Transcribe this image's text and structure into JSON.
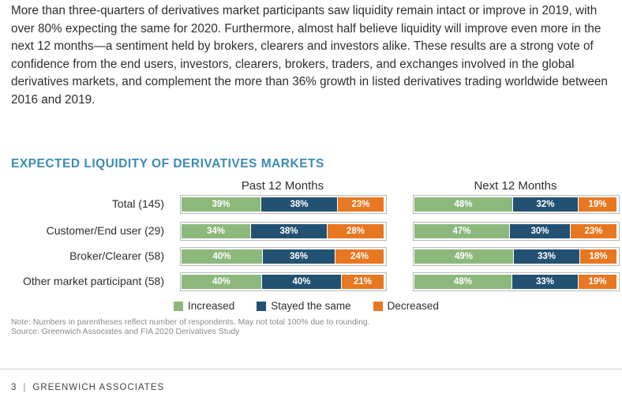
{
  "intro_text": "More than three-quarters of derivatives market participants saw liquidity remain intact or improve in 2019, with over 80% expecting the same for 2020. Furthermore, almost half believe liquidity will improve even more in the next 12 months—a sentiment held by brokers, clearers and investors alike. These results are a strong vote of confidence from the end users, investors, clearers, brokers, traders, and exchanges involved in the global derivatives markets, and complement the more than 36% growth in listed derivatives trading worldwide between 2016 and 2019.",
  "chart_data": {
    "type": "bar",
    "stacked": true,
    "orientation": "horizontal",
    "title": "EXPECTED LIQUIDITY OF DERIVATIVES MARKETS",
    "categories": [
      "Total (145)",
      "Customer/End user (29)",
      "Broker/Clearer (58)",
      "Other market participant (58)"
    ],
    "colors": {
      "Increased": "#8db87c",
      "Stayed the same": "#225171",
      "Decreased": "#e87722"
    },
    "legend": [
      "Increased",
      "Stayed the same",
      "Decreased"
    ],
    "panels": [
      {
        "title": "Past 12 Months",
        "series": [
          {
            "name": "Increased",
            "values": [
              39,
              34,
              40,
              40
            ]
          },
          {
            "name": "Stayed the same",
            "values": [
              38,
              38,
              36,
              40
            ]
          },
          {
            "name": "Decreased",
            "values": [
              23,
              28,
              24,
              21
            ]
          }
        ]
      },
      {
        "title": "Next 12 Months",
        "series": [
          {
            "name": "Increased",
            "values": [
              48,
              47,
              49,
              48
            ]
          },
          {
            "name": "Stayed the same",
            "values": [
              32,
              30,
              33,
              33
            ]
          },
          {
            "name": "Decreased",
            "values": [
              19,
              23,
              18,
              19
            ]
          }
        ]
      }
    ],
    "value_suffix": "%",
    "note": "Note: Numbers in parentheses reflect number of respondents. May not total 100% due to rounding.",
    "source": "Source: Greenwich Associates and FIA 2020 Derivatives Study"
  },
  "footer": {
    "page_number": "3",
    "separator": "|",
    "brand": "GREENWICH ASSOCIATES"
  }
}
